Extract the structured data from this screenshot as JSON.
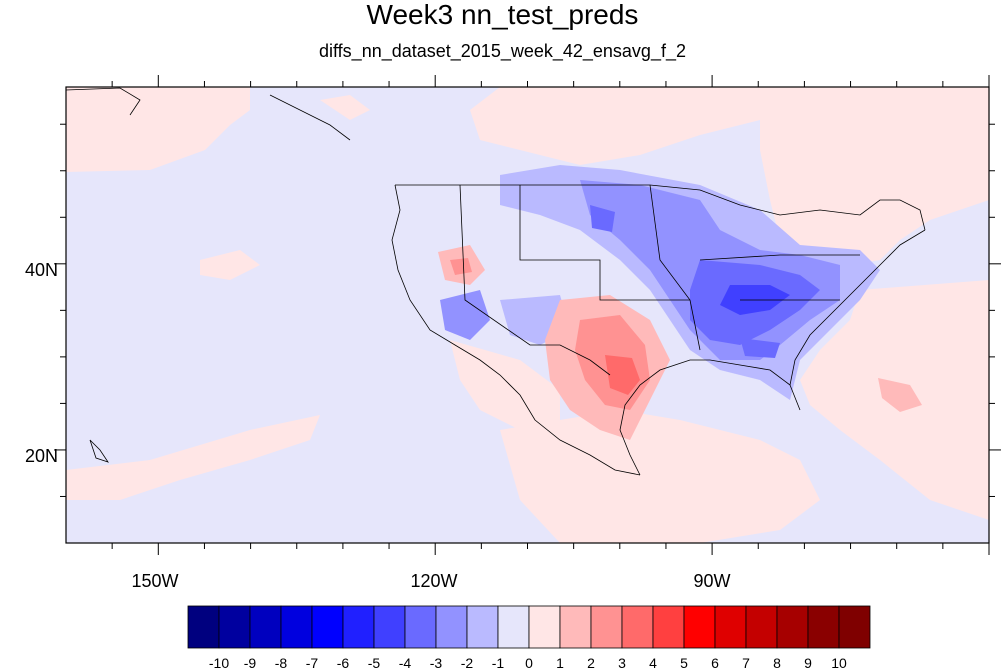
{
  "title": "Week3 nn_test_preds",
  "subtitle": "diffs_nn_dataset_2015_week_42_ensavg_f_2",
  "axes": {
    "lat_labels": [
      {
        "label": "40N",
        "lat": 40
      },
      {
        "label": "20N",
        "lat": 20
      }
    ],
    "lon_labels": [
      {
        "label": "150W",
        "lon": -150
      },
      {
        "label": "120W",
        "lon": -120
      },
      {
        "label": "90W",
        "lon": -90
      }
    ],
    "lon_range": [
      -160,
      -60
    ],
    "lat_range": [
      10,
      59
    ]
  },
  "colorbar": {
    "labels": [
      "-10",
      "-9",
      "-8",
      "-7",
      "-6",
      "-5",
      "-4",
      "-3",
      "-2",
      "-1",
      "0",
      "1",
      "2",
      "3",
      "4",
      "5",
      "6",
      "7",
      "8",
      "9",
      "10"
    ],
    "colors": [
      "#00007f",
      "#00009f",
      "#0000bf",
      "#0000df",
      "#0000ff",
      "#2020ff",
      "#4040ff",
      "#6a6aff",
      "#9292ff",
      "#babaff",
      "#e6e6fb",
      "#ffe6e6",
      "#ffbaba",
      "#ff9292",
      "#ff6a6a",
      "#ff4040",
      "#ff0000",
      "#df0000",
      "#c40000",
      "#a60000",
      "#8a0000",
      "#7f0000"
    ]
  },
  "palette": {
    "ocean_background": "#e6e6fb",
    "pale_red": "#ffe6e6",
    "light_blue": "#babaff",
    "mid_blue": "#9292ff",
    "blue": "#6a6aff",
    "deep_blue": "#4040ff",
    "light_red": "#ffbaba",
    "mid_red": "#ff9292",
    "red": "#ff6a6a",
    "coast_line": "#000000"
  }
}
